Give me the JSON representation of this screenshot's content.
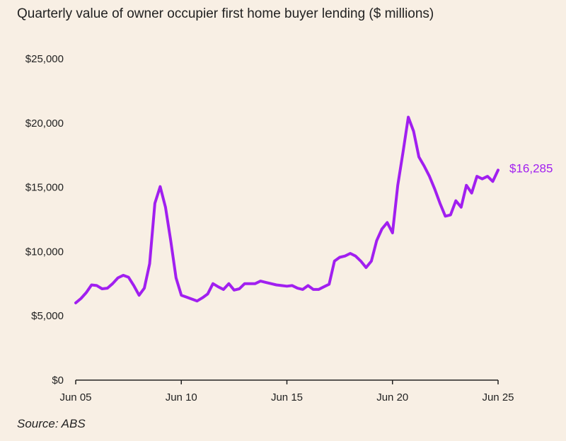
{
  "chart_data": {
    "type": "line",
    "title": "Quarterly value of owner occupier first home buyer lending ($ millions)",
    "source": "Source: ABS",
    "xlabel": "",
    "ylabel": "",
    "ylim": [
      0,
      25000
    ],
    "yticks": [
      0,
      5000,
      10000,
      15000,
      20000,
      25000
    ],
    "ytick_labels": [
      "$0",
      "$5,000",
      "$10,000",
      "$15,000",
      "$20,000",
      "$25,000"
    ],
    "xticks": [
      "Jun 05",
      "Jun 10",
      "Jun 15",
      "Jun 20",
      "Jun 25"
    ],
    "grid": false,
    "line_color": "#a11ff0",
    "end_label": "$16,285",
    "series": [
      {
        "x": [
          "Jun 05",
          "Sep 05",
          "Dec 05",
          "Mar 06",
          "Jun 06",
          "Sep 06",
          "Dec 06",
          "Mar 07",
          "Jun 07",
          "Sep 07",
          "Dec 07",
          "Mar 08",
          "Jun 08",
          "Sep 08",
          "Dec 08",
          "Mar 09",
          "Jun 09",
          "Sep 09",
          "Dec 09",
          "Mar 10",
          "Jun 10",
          "Sep 10",
          "Dec 10",
          "Mar 11",
          "Jun 11",
          "Sep 11",
          "Dec 11",
          "Mar 12",
          "Jun 12",
          "Sep 12",
          "Dec 12",
          "Mar 13",
          "Jun 13",
          "Sep 13",
          "Dec 13",
          "Mar 14",
          "Jun 14",
          "Sep 14",
          "Dec 14",
          "Mar 15",
          "Jun 15",
          "Sep 15",
          "Dec 15",
          "Mar 16",
          "Jun 16",
          "Sep 16",
          "Dec 16",
          "Mar 17",
          "Jun 17",
          "Sep 17",
          "Dec 17",
          "Mar 18",
          "Jun 18",
          "Sep 18",
          "Dec 18",
          "Mar 19",
          "Jun 19",
          "Sep 19",
          "Dec 19",
          "Mar 20",
          "Jun 20",
          "Sep 20",
          "Dec 20",
          "Mar 21",
          "Jun 21",
          "Sep 21",
          "Dec 21",
          "Mar 22",
          "Jun 22",
          "Sep 22",
          "Dec 22",
          "Mar 23",
          "Jun 23",
          "Sep 23",
          "Dec 23",
          "Mar 24",
          "Jun 24",
          "Sep 24",
          "Dec 24",
          "Mar 25",
          "Jun 25"
        ],
        "values": [
          5950,
          6300,
          6750,
          7350,
          7300,
          7050,
          7100,
          7450,
          7900,
          8100,
          7950,
          7300,
          6550,
          7100,
          9000,
          13700,
          15000,
          13400,
          10800,
          7900,
          6550,
          6400,
          6250,
          6100,
          6350,
          6650,
          7450,
          7200,
          7000,
          7450,
          6950,
          7050,
          7450,
          7450,
          7450,
          7650,
          7550,
          7450,
          7350,
          7300,
          7250,
          7300,
          7100,
          7000,
          7300,
          7000,
          7000,
          7200,
          7400,
          9200,
          9500,
          9600,
          9800,
          9600,
          9200,
          8700,
          9200,
          10800,
          11700,
          12200,
          11400,
          15100,
          17700,
          20400,
          19300,
          17300,
          16600,
          15800,
          14800,
          13700,
          12700,
          12800,
          13900,
          13400,
          15100,
          14500,
          15800,
          15600,
          15800,
          15400,
          16285
        ]
      }
    ]
  }
}
